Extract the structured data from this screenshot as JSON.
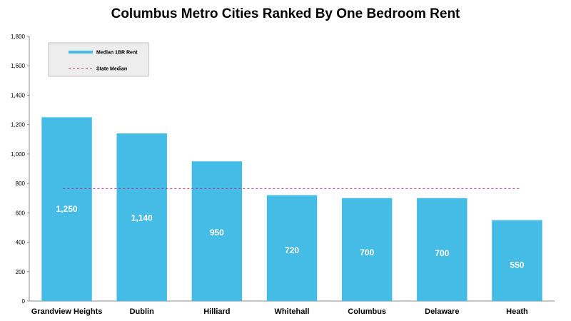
{
  "chart_data": {
    "type": "bar",
    "title": "Columbus Metro Cities Ranked By One Bedroom Rent",
    "xlabel": "",
    "ylabel": "",
    "categories": [
      "Grandview Heights",
      "Dublin",
      "Hilliard",
      "Whitehall",
      "Columbus",
      "Delaware",
      "Heath"
    ],
    "series": [
      {
        "name": "Median 1BR Rent",
        "values": [
          1250,
          1140,
          950,
          720,
          700,
          700,
          550
        ],
        "color": "#45BCE5",
        "data_labels": [
          "1,250",
          "1,140",
          "950",
          "720",
          "700",
          "700",
          "550"
        ]
      }
    ],
    "reference_line": {
      "name": "State Median",
      "value": 765,
      "color": "#B4358F",
      "style": "dashed"
    },
    "ylim": [
      0,
      1800
    ],
    "yticks": [
      0,
      200,
      400,
      600,
      800,
      1000,
      1200,
      1400,
      1600,
      1800
    ],
    "ytick_labels": [
      "0",
      "200",
      "400",
      "600",
      "800",
      "1,000",
      "1,200",
      "1,400",
      "1,600",
      "1,800"
    ],
    "grid": false,
    "legend_position": "top-left"
  }
}
